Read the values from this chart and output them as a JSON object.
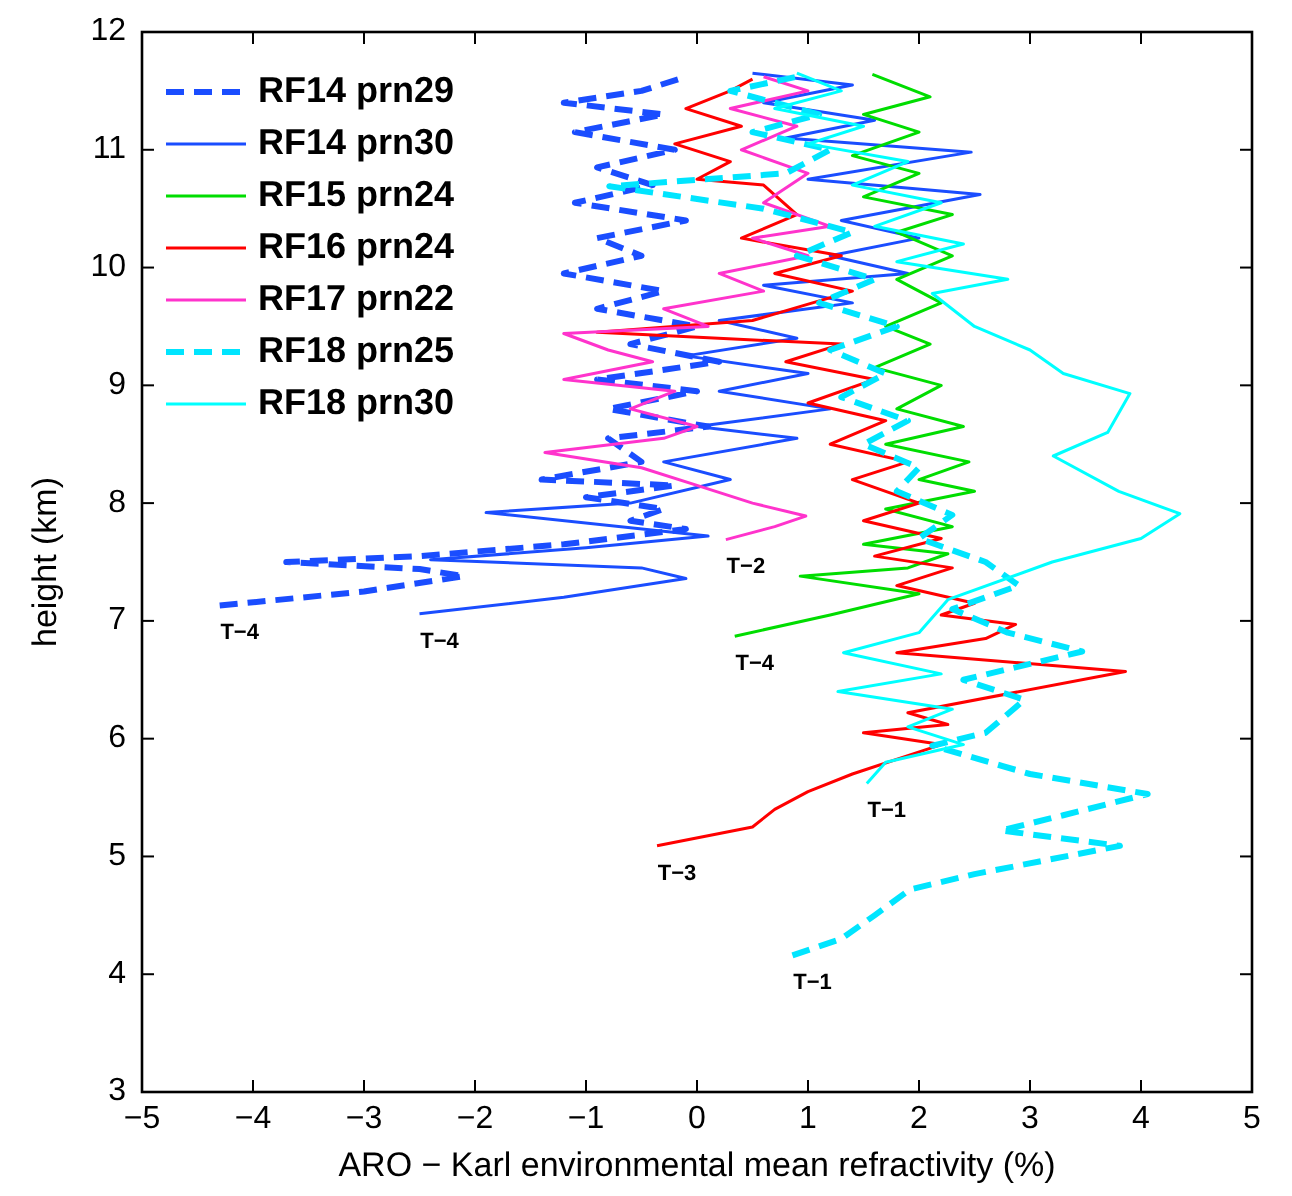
{
  "chart_data": {
    "type": "line",
    "xlabel": "ARO − Karl environmental mean refractivity (%)",
    "ylabel": "height (km)",
    "xlim": [
      -5,
      5
    ],
    "ylim": [
      3,
      12
    ],
    "xticks": [
      {
        "value": -5,
        "label": "−5"
      },
      {
        "value": -4,
        "label": "−4"
      },
      {
        "value": -3,
        "label": "−3"
      },
      {
        "value": -2,
        "label": "−2"
      },
      {
        "value": -1,
        "label": "−1"
      },
      0,
      1,
      2,
      3,
      4,
      5
    ],
    "yticks": [
      3,
      4,
      5,
      6,
      7,
      8,
      9,
      10,
      11,
      12
    ],
    "grid": false,
    "legend": "top left",
    "series": [
      {
        "name": "RF14 prn29",
        "color": "#1a4dff",
        "line_style": "dashed",
        "x": [
          -4.3,
          -3.0,
          -2.1,
          -2.5,
          -3.7,
          -2.5,
          -1.2,
          -0.1,
          -0.6,
          -0.3,
          -1.0,
          -0.2,
          -1.4,
          -0.5,
          -0.8,
          0.1,
          -0.8,
          0.0,
          -0.9,
          0.2,
          -0.6,
          0.0,
          -0.9,
          -0.3,
          -1.2,
          -0.5,
          -0.9,
          -0.1,
          -1.1,
          -0.4,
          -0.9,
          -0.2,
          -1.1,
          -0.3,
          -1.2,
          -0.5,
          -0.1
        ],
        "values": [
          7.13,
          7.25,
          7.38,
          7.44,
          7.5,
          7.55,
          7.65,
          7.78,
          7.85,
          7.95,
          8.05,
          8.15,
          8.2,
          8.35,
          8.55,
          8.65,
          8.8,
          8.95,
          9.05,
          9.2,
          9.35,
          9.5,
          9.65,
          9.8,
          9.95,
          10.1,
          10.25,
          10.4,
          10.55,
          10.7,
          10.85,
          11.0,
          11.15,
          11.3,
          11.4,
          11.5,
          11.62
        ]
      },
      {
        "name": "RF14 prn30",
        "color": "#1a4dff",
        "line_style": "solid",
        "x": [
          -2.5,
          -1.2,
          -0.1,
          -0.5,
          -2.4,
          -1.0,
          0.1,
          -1.9,
          -0.6,
          0.3,
          -0.3,
          0.9,
          0.0,
          1.2,
          0.2,
          1.0,
          -0.1,
          0.9,
          0.2,
          1.4,
          0.6,
          1.9,
          1.2,
          2.0,
          1.3,
          2.55,
          1.0,
          2.47,
          0.8,
          1.6,
          0.6,
          1.4,
          0.5
        ],
        "values": [
          7.06,
          7.2,
          7.36,
          7.45,
          7.52,
          7.62,
          7.72,
          7.92,
          8.0,
          8.2,
          8.35,
          8.55,
          8.65,
          8.8,
          8.95,
          9.1,
          9.25,
          9.4,
          9.55,
          9.7,
          9.85,
          9.95,
          10.1,
          10.25,
          10.4,
          10.62,
          10.75,
          10.98,
          11.1,
          11.25,
          11.4,
          11.55,
          11.65
        ]
      },
      {
        "name": "RF15 prn24",
        "color": "#00dd00",
        "line_style": "solid",
        "x": [
          0.34,
          1.2,
          2.0,
          0.93,
          1.9,
          2.26,
          1.5,
          2.3,
          1.7,
          2.5,
          2.0,
          2.45,
          1.7,
          2.4,
          1.8,
          2.2,
          1.6,
          2.1,
          1.7,
          2.2,
          1.8,
          2.3,
          1.8,
          2.3,
          1.5,
          2.0,
          1.4,
          2.0,
          1.5,
          2.1,
          1.58
        ],
        "values": [
          6.87,
          7.05,
          7.23,
          7.38,
          7.45,
          7.57,
          7.65,
          7.8,
          7.95,
          8.1,
          8.2,
          8.35,
          8.5,
          8.65,
          8.8,
          9.0,
          9.15,
          9.35,
          9.5,
          9.7,
          9.9,
          10.1,
          10.3,
          10.45,
          10.6,
          10.8,
          10.95,
          11.15,
          11.3,
          11.45,
          11.64
        ]
      },
      {
        "name": "RF16 prn24",
        "color": "#ff0000",
        "line_style": "solid",
        "x": [
          -0.36,
          0.5,
          0.7,
          1.0,
          1.4,
          2.2,
          1.5,
          2.26,
          1.9,
          3.86,
          1.8,
          2.6,
          2.87,
          2.2,
          2.5,
          1.8,
          2.3,
          1.6,
          2.2,
          1.5,
          2.0,
          1.4,
          1.9,
          1.2,
          1.7,
          1.0,
          1.6,
          0.8,
          1.3,
          -0.9,
          0.5,
          1.4,
          0.7,
          1.3,
          0.4,
          0.9,
          0.6,
          0.0,
          0.3,
          -0.2,
          0.4,
          -0.1,
          0.3,
          0.5
        ],
        "values": [
          5.09,
          5.25,
          5.4,
          5.55,
          5.7,
          5.95,
          6.05,
          6.12,
          6.22,
          6.57,
          6.73,
          6.85,
          6.97,
          7.05,
          7.15,
          7.3,
          7.45,
          7.55,
          7.7,
          7.85,
          8.0,
          8.2,
          8.35,
          8.5,
          8.7,
          8.85,
          9.05,
          9.2,
          9.35,
          9.45,
          9.55,
          9.8,
          9.95,
          10.1,
          10.25,
          10.45,
          10.7,
          10.75,
          10.9,
          11.05,
          11.2,
          11.35,
          11.5,
          11.6
        ]
      },
      {
        "name": "RF17 prn22",
        "color": "#ff33cc",
        "line_style": "solid",
        "x": [
          0.26,
          0.7,
          0.98,
          0.5,
          0.0,
          -0.5,
          -1.37,
          -0.3,
          0.0,
          -0.6,
          -0.2,
          -1.2,
          -0.4,
          -0.8,
          -1.2,
          0.1,
          -0.3,
          0.6,
          0.2,
          1.0,
          0.5,
          1.2,
          0.6,
          1.0,
          0.4,
          0.9,
          0.3,
          1.0,
          0.6
        ],
        "values": [
          7.69,
          7.8,
          7.89,
          8.0,
          8.15,
          8.3,
          8.43,
          8.55,
          8.65,
          8.8,
          8.95,
          9.05,
          9.2,
          9.3,
          9.44,
          9.5,
          9.65,
          9.8,
          9.95,
          10.1,
          10.25,
          10.35,
          10.55,
          10.8,
          11.0,
          11.2,
          11.35,
          11.5,
          11.62
        ]
      },
      {
        "name": "RF18 prn25",
        "color": "#00e5ff",
        "line_style": "dashed",
        "x": [
          0.86,
          1.3,
          1.6,
          1.92,
          2.5,
          3.81,
          2.74,
          3.3,
          4.06,
          3.0,
          2.12,
          2.6,
          2.95,
          2.4,
          3.47,
          2.8,
          2.3,
          2.9,
          2.6,
          2.0,
          2.3,
          1.8,
          2.0,
          1.5,
          1.9,
          1.3,
          1.7,
          1.2,
          1.8,
          1.1,
          1.6,
          0.9,
          1.4,
          0.6,
          -0.79,
          0.8,
          1.2,
          0.5,
          1.1,
          0.3,
          0.9
        ],
        "values": [
          4.16,
          4.3,
          4.5,
          4.72,
          4.85,
          5.09,
          5.22,
          5.35,
          5.53,
          5.7,
          5.94,
          6.05,
          6.33,
          6.5,
          6.74,
          6.9,
          7.1,
          7.3,
          7.5,
          7.7,
          7.9,
          8.1,
          8.3,
          8.5,
          8.7,
          8.9,
          9.1,
          9.3,
          9.5,
          9.7,
          9.9,
          10.1,
          10.3,
          10.5,
          10.69,
          10.8,
          11.0,
          11.15,
          11.3,
          11.5,
          11.62
        ]
      },
      {
        "name": "RF18 prn30",
        "color": "#00ffff",
        "line_style": "solid",
        "x": [
          1.53,
          1.7,
          2.4,
          1.9,
          2.3,
          1.27,
          2.2,
          1.32,
          2.0,
          2.26,
          3.2,
          4.0,
          4.35,
          3.8,
          3.21,
          3.7,
          3.9,
          3.3,
          3.0,
          2.5,
          2.12,
          2.8,
          1.8,
          2.4,
          1.6,
          2.2,
          1.4,
          1.9,
          1.0,
          1.5,
          0.7,
          1.3,
          0.9
        ],
        "values": [
          5.62,
          5.8,
          5.95,
          6.1,
          6.25,
          6.4,
          6.55,
          6.73,
          6.9,
          7.18,
          7.5,
          7.7,
          7.91,
          8.1,
          8.4,
          8.6,
          8.93,
          9.1,
          9.3,
          9.5,
          9.78,
          9.9,
          10.05,
          10.2,
          10.35,
          10.55,
          10.7,
          10.9,
          11.05,
          11.2,
          11.35,
          11.5,
          11.65
        ]
      }
    ],
    "annotations": [
      {
        "text": "T−4",
        "x": -4.3,
        "y": 7.13
      },
      {
        "text": "T−4",
        "x": -2.5,
        "y": 7.06
      },
      {
        "text": "T−2",
        "x": 0.26,
        "y": 7.69
      },
      {
        "text": "T−4",
        "x": 0.34,
        "y": 6.87
      },
      {
        "text": "T−1",
        "x": 1.53,
        "y": 5.62
      },
      {
        "text": "T−3",
        "x": -0.36,
        "y": 5.09
      },
      {
        "text": "T−1",
        "x": 0.86,
        "y": 4.16
      }
    ]
  }
}
